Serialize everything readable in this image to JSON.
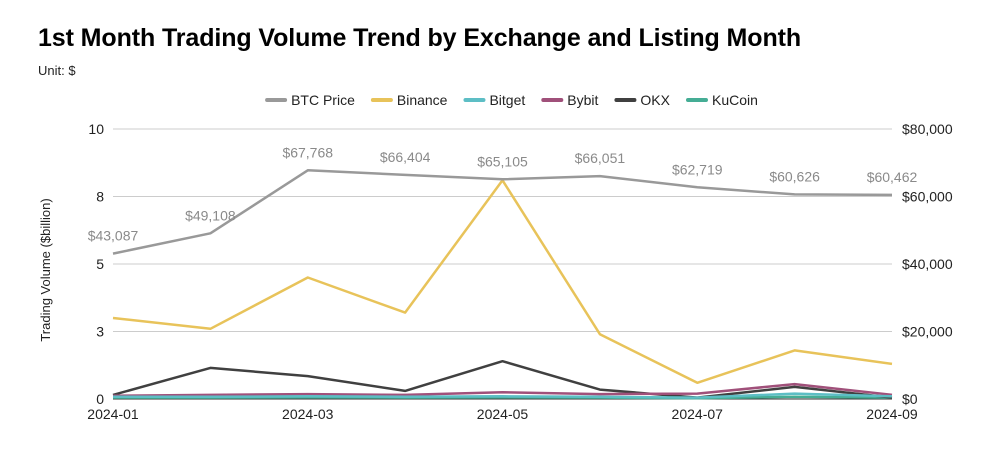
{
  "chart_data": {
    "type": "line",
    "title": "1st Month Trading Volume Trend by Exchange and Listing Month",
    "subtitle": "Unit: $",
    "xlabel": "",
    "ylabel": "Trading Volume ($billion)",
    "y2label": "",
    "categories": [
      "2024-01",
      "2024-02",
      "2024-03",
      "2024-04",
      "2024-05",
      "2024-06",
      "2024-07",
      "2024-08",
      "2024-09"
    ],
    "x_tick_labels": [
      "2024-01",
      "2024-03",
      "2024-05",
      "2024-07",
      "2024-09"
    ],
    "ylim": [
      0,
      10
    ],
    "y_tick_labels": [
      "0",
      "3",
      "5",
      "8",
      "10"
    ],
    "y2lim": [
      0,
      80000
    ],
    "y2_tick_labels": [
      "$0",
      "$20,000",
      "$40,000",
      "$60,000",
      "$80,000"
    ],
    "grid": true,
    "legend_position": "top-center",
    "btc_price": {
      "name": "BTC Price",
      "color": "#999999",
      "axis": "right",
      "values": [
        43087,
        49108,
        67768,
        66404,
        65105,
        66051,
        62719,
        60626,
        60462
      ],
      "labels": [
        "$43,087",
        "$49,108",
        "$67,768",
        "$66,404",
        "$65,105",
        "$66,051",
        "$62,719",
        "$60,626",
        "$60,462"
      ]
    },
    "series": [
      {
        "name": "Binance",
        "color": "#E8C35A",
        "axis": "left",
        "values": [
          3.0,
          2.6,
          4.5,
          3.2,
          8.1,
          2.4,
          0.6,
          1.8,
          1.3
        ]
      },
      {
        "name": "Bitget",
        "color": "#5DBEC5",
        "axis": "left",
        "values": [
          0.08,
          0.08,
          0.1,
          0.08,
          0.1,
          0.08,
          0.05,
          0.2,
          0.1
        ]
      },
      {
        "name": "Bybit",
        "color": "#A0507A",
        "axis": "left",
        "values": [
          0.12,
          0.15,
          0.18,
          0.15,
          0.25,
          0.18,
          0.2,
          0.55,
          0.15
        ]
      },
      {
        "name": "OKX",
        "color": "#404040",
        "axis": "left",
        "values": [
          0.15,
          1.15,
          0.85,
          0.3,
          1.4,
          0.35,
          0.05,
          0.45,
          0.05
        ]
      },
      {
        "name": "KuCoin",
        "color": "#45AD95",
        "axis": "left",
        "values": [
          0.05,
          0.05,
          0.06,
          0.05,
          0.06,
          0.05,
          0.03,
          0.08,
          0.05
        ]
      }
    ]
  }
}
